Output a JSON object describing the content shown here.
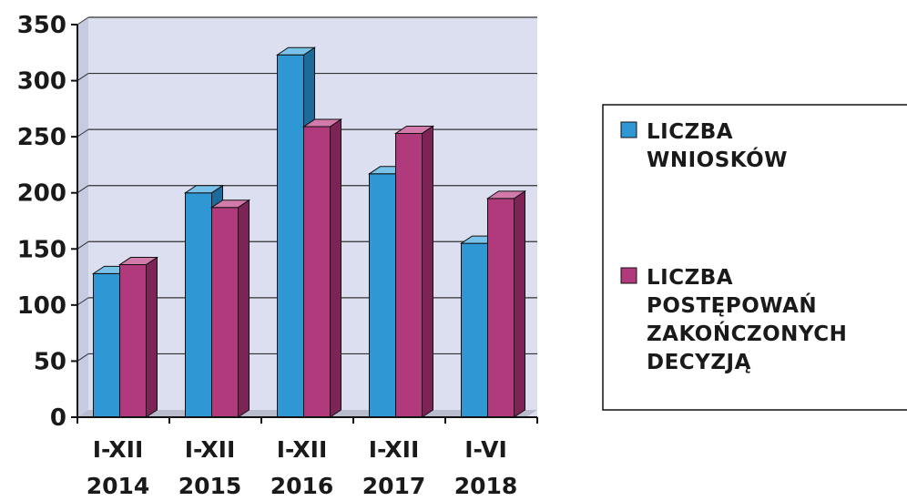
{
  "chart_data": {
    "type": "bar",
    "title": "",
    "xlabel": "",
    "ylabel": "",
    "categories": [
      [
        "I-XII",
        "2014"
      ],
      [
        "I-XII",
        "2015"
      ],
      [
        "I-XII",
        "2016"
      ],
      [
        "I-XII",
        "2017"
      ],
      [
        "I-VI",
        "2018"
      ]
    ],
    "series": [
      {
        "name": [
          "LICZBA",
          "WNIOSKÓW"
        ],
        "values": [
          128,
          200,
          323,
          217,
          155
        ]
      },
      {
        "name": [
          "LICZBA",
          "POSTĘPOWAŃ",
          "ZAKOŃCZONYCH",
          "DECYZJĄ"
        ],
        "values": [
          136,
          187,
          259,
          253,
          195
        ]
      }
    ],
    "ylim": [
      0,
      350
    ],
    "yticks": [
      0,
      50,
      100,
      150,
      200,
      250,
      300,
      350
    ],
    "grid": true,
    "legend_position": "right",
    "colors": {
      "series": [
        "#2f97d3",
        "#b13a7d"
      ],
      "series_side": [
        "#1d6a9b",
        "#7d2456"
      ],
      "series_top": [
        "#79c3ea",
        "#d27aaa"
      ],
      "plot_bg": "#dcdff0",
      "grid": "#333333"
    }
  }
}
